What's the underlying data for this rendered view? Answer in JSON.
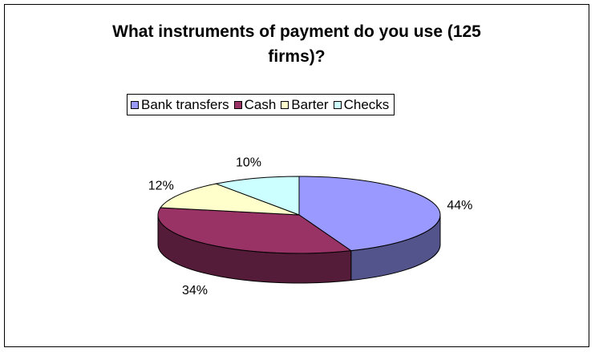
{
  "chart_data": {
    "type": "pie",
    "title_lines": [
      "What instruments of payment do you use (125",
      "firms)?"
    ],
    "categories": [
      "Bank transfers",
      "Cash",
      "Barter",
      "Checks"
    ],
    "values": [
      44,
      34,
      12,
      10
    ],
    "labels": [
      "44%",
      "34%",
      "12%",
      "10%"
    ],
    "colors": [
      "#9999ff",
      "#993366",
      "#ffffcc",
      "#ccffff"
    ],
    "legend_position": "top"
  }
}
